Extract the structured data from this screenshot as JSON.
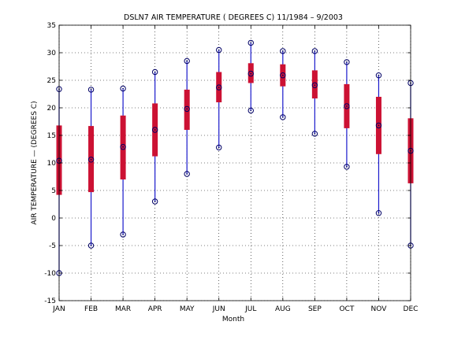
{
  "chart_data": {
    "type": "box-range",
    "title": "DSLN7  AIR TEMPERATURE ( DEGREES C) 11/1984 – 9/2003",
    "xlabel": "Month",
    "ylabel": "AIR TEMPERATURE — (DEGREES C)",
    "ylim": [
      -15,
      35
    ],
    "yticks": [
      -15,
      -10,
      -5,
      0,
      5,
      10,
      15,
      20,
      25,
      30,
      35
    ],
    "grid": true,
    "categories": [
      "JAN",
      "FEB",
      "MAR",
      "APR",
      "MAY",
      "JUN",
      "JUL",
      "AUG",
      "SEP",
      "OCT",
      "NOV",
      "DEC"
    ],
    "min": [
      -10,
      -5,
      -3,
      3,
      8,
      12.8,
      19.5,
      18.3,
      15.3,
      9.3,
      0.9,
      -5
    ],
    "box_low": [
      4.2,
      4.7,
      7,
      11.2,
      16,
      21,
      24.5,
      23.9,
      21.7,
      16.3,
      11.6,
      6.3
    ],
    "median": [
      10.4,
      10.6,
      12.9,
      16,
      19.8,
      23.7,
      26.2,
      25.9,
      24.1,
      20.3,
      16.8,
      12.2
    ],
    "box_high": [
      16.8,
      16.7,
      18.6,
      20.8,
      23.3,
      26.5,
      28.1,
      27.9,
      26.8,
      24.3,
      22,
      18.1
    ],
    "max": [
      23.4,
      23.3,
      23.5,
      26.5,
      28.5,
      30.5,
      31.8,
      30.3,
      30.3,
      28.3,
      25.9,
      24.5
    ],
    "colors": {
      "box": "#cc1133",
      "whisker": "#1a1acc",
      "marker": "#000066"
    }
  }
}
